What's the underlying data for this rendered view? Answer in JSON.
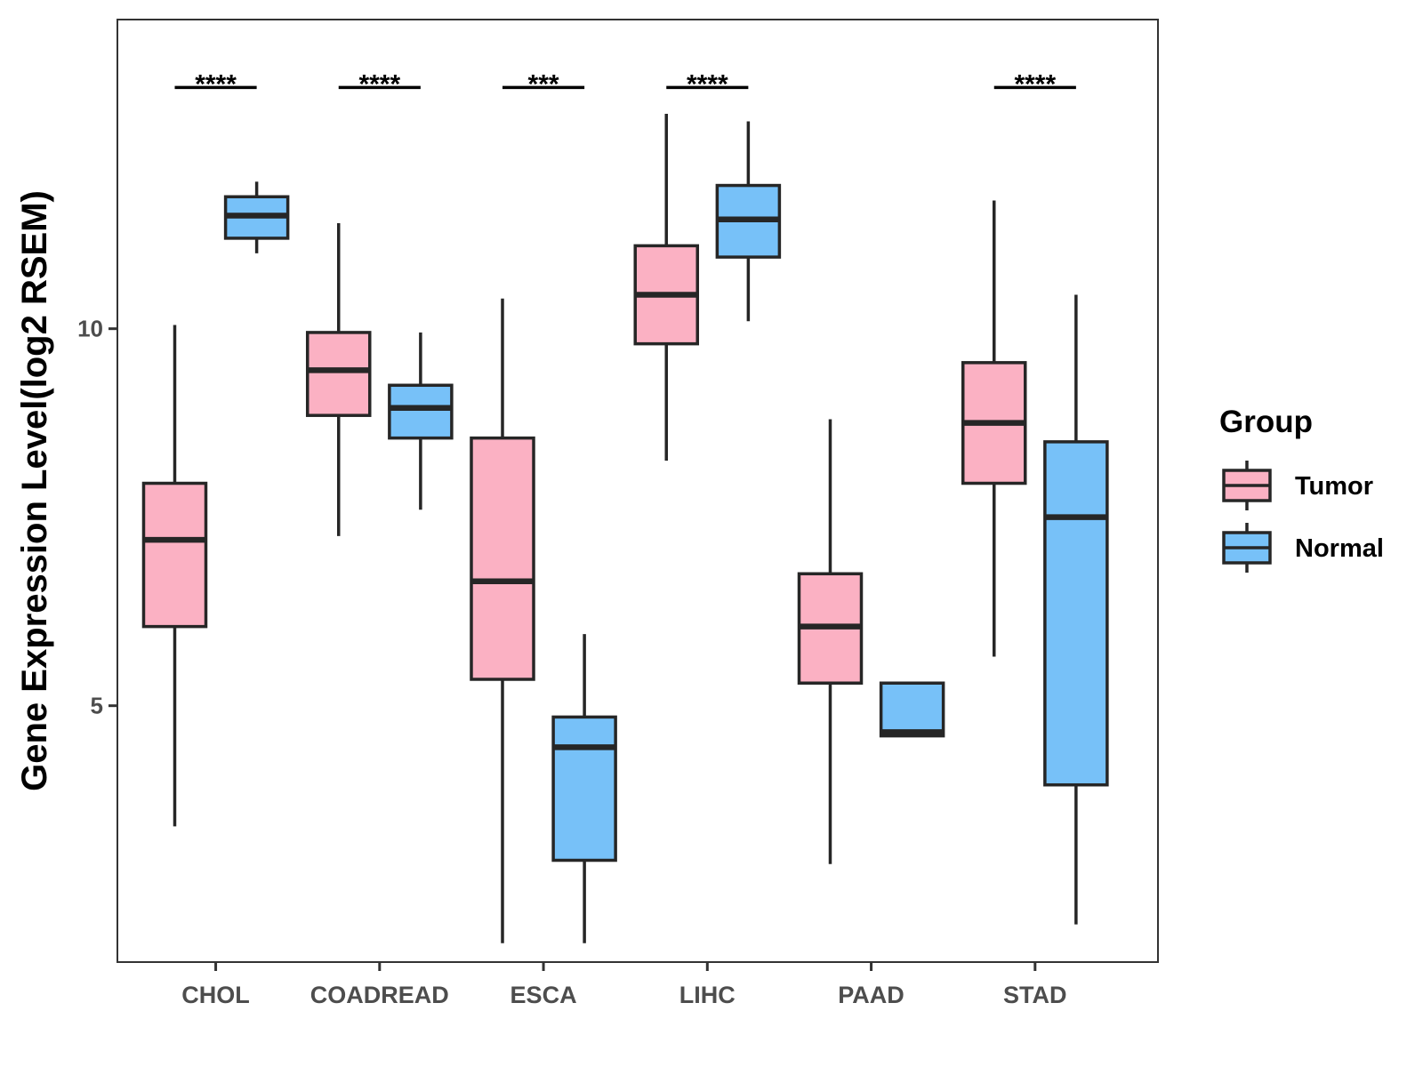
{
  "chart_data": {
    "type": "boxplot",
    "title": "",
    "xlabel": "",
    "ylabel": "Gene Expression Level(log2 RSEM)",
    "ylim": [
      1.6,
      14.1
    ],
    "yticks": [
      5,
      10
    ],
    "grid": false,
    "categories": [
      "CHOL",
      "COADREAD",
      "ESCA",
      "LIHC",
      "PAAD",
      "STAD"
    ],
    "legend": {
      "title": "Group",
      "position": "right",
      "entries": [
        "Tumor",
        "Normal"
      ]
    },
    "colors": {
      "Tumor": "#fbb1c3",
      "Normal": "#77c1f8",
      "outline": "#262626",
      "panel_border": "#333333"
    },
    "series": [
      {
        "name": "Tumor",
        "boxes": [
          {
            "category": "CHOL",
            "whisker_low": 3.4,
            "q1": 6.05,
            "median": 7.2,
            "q3": 7.95,
            "whisker_high": 10.05
          },
          {
            "category": "COADREAD",
            "whisker_low": 7.25,
            "q1": 8.85,
            "median": 9.45,
            "q3": 9.95,
            "whisker_high": 11.4
          },
          {
            "category": "ESCA",
            "whisker_low": 1.85,
            "q1": 5.35,
            "median": 6.65,
            "q3": 8.55,
            "whisker_high": 10.4
          },
          {
            "category": "LIHC",
            "whisker_low": 8.25,
            "q1": 9.8,
            "median": 10.45,
            "q3": 11.1,
            "whisker_high": 12.85
          },
          {
            "category": "PAAD",
            "whisker_low": 2.9,
            "q1": 5.3,
            "median": 6.05,
            "q3": 6.75,
            "whisker_high": 8.8
          },
          {
            "category": "STAD",
            "whisker_low": 5.65,
            "q1": 7.95,
            "median": 8.75,
            "q3": 9.55,
            "whisker_high": 11.7
          }
        ]
      },
      {
        "name": "Normal",
        "boxes": [
          {
            "category": "CHOL",
            "whisker_low": 11.0,
            "q1": 11.2,
            "median": 11.5,
            "q3": 11.75,
            "whisker_high": 11.95
          },
          {
            "category": "COADREAD",
            "whisker_low": 7.6,
            "q1": 8.55,
            "median": 8.95,
            "q3": 9.25,
            "whisker_high": 9.95
          },
          {
            "category": "ESCA",
            "whisker_low": 1.85,
            "q1": 2.95,
            "median": 4.45,
            "q3": 4.85,
            "whisker_high": 5.95
          },
          {
            "category": "LIHC",
            "whisker_low": 10.1,
            "q1": 10.95,
            "median": 11.45,
            "q3": 11.9,
            "whisker_high": 12.75
          },
          {
            "category": "PAAD",
            "whisker_low": 4.6,
            "q1": 4.6,
            "median": 4.65,
            "q3": 5.3,
            "whisker_high": 5.3
          },
          {
            "category": "STAD",
            "whisker_low": 2.1,
            "q1": 3.95,
            "median": 7.5,
            "q3": 8.5,
            "whisker_high": 10.45
          }
        ]
      }
    ],
    "significance": [
      {
        "category": "CHOL",
        "label": "****"
      },
      {
        "category": "COADREAD",
        "label": "****"
      },
      {
        "category": "ESCA",
        "label": "***"
      },
      {
        "category": "LIHC",
        "label": "****"
      },
      {
        "category": "PAAD",
        "label": ""
      },
      {
        "category": "STAD",
        "label": "****"
      }
    ],
    "significance_level": 13.2
  }
}
